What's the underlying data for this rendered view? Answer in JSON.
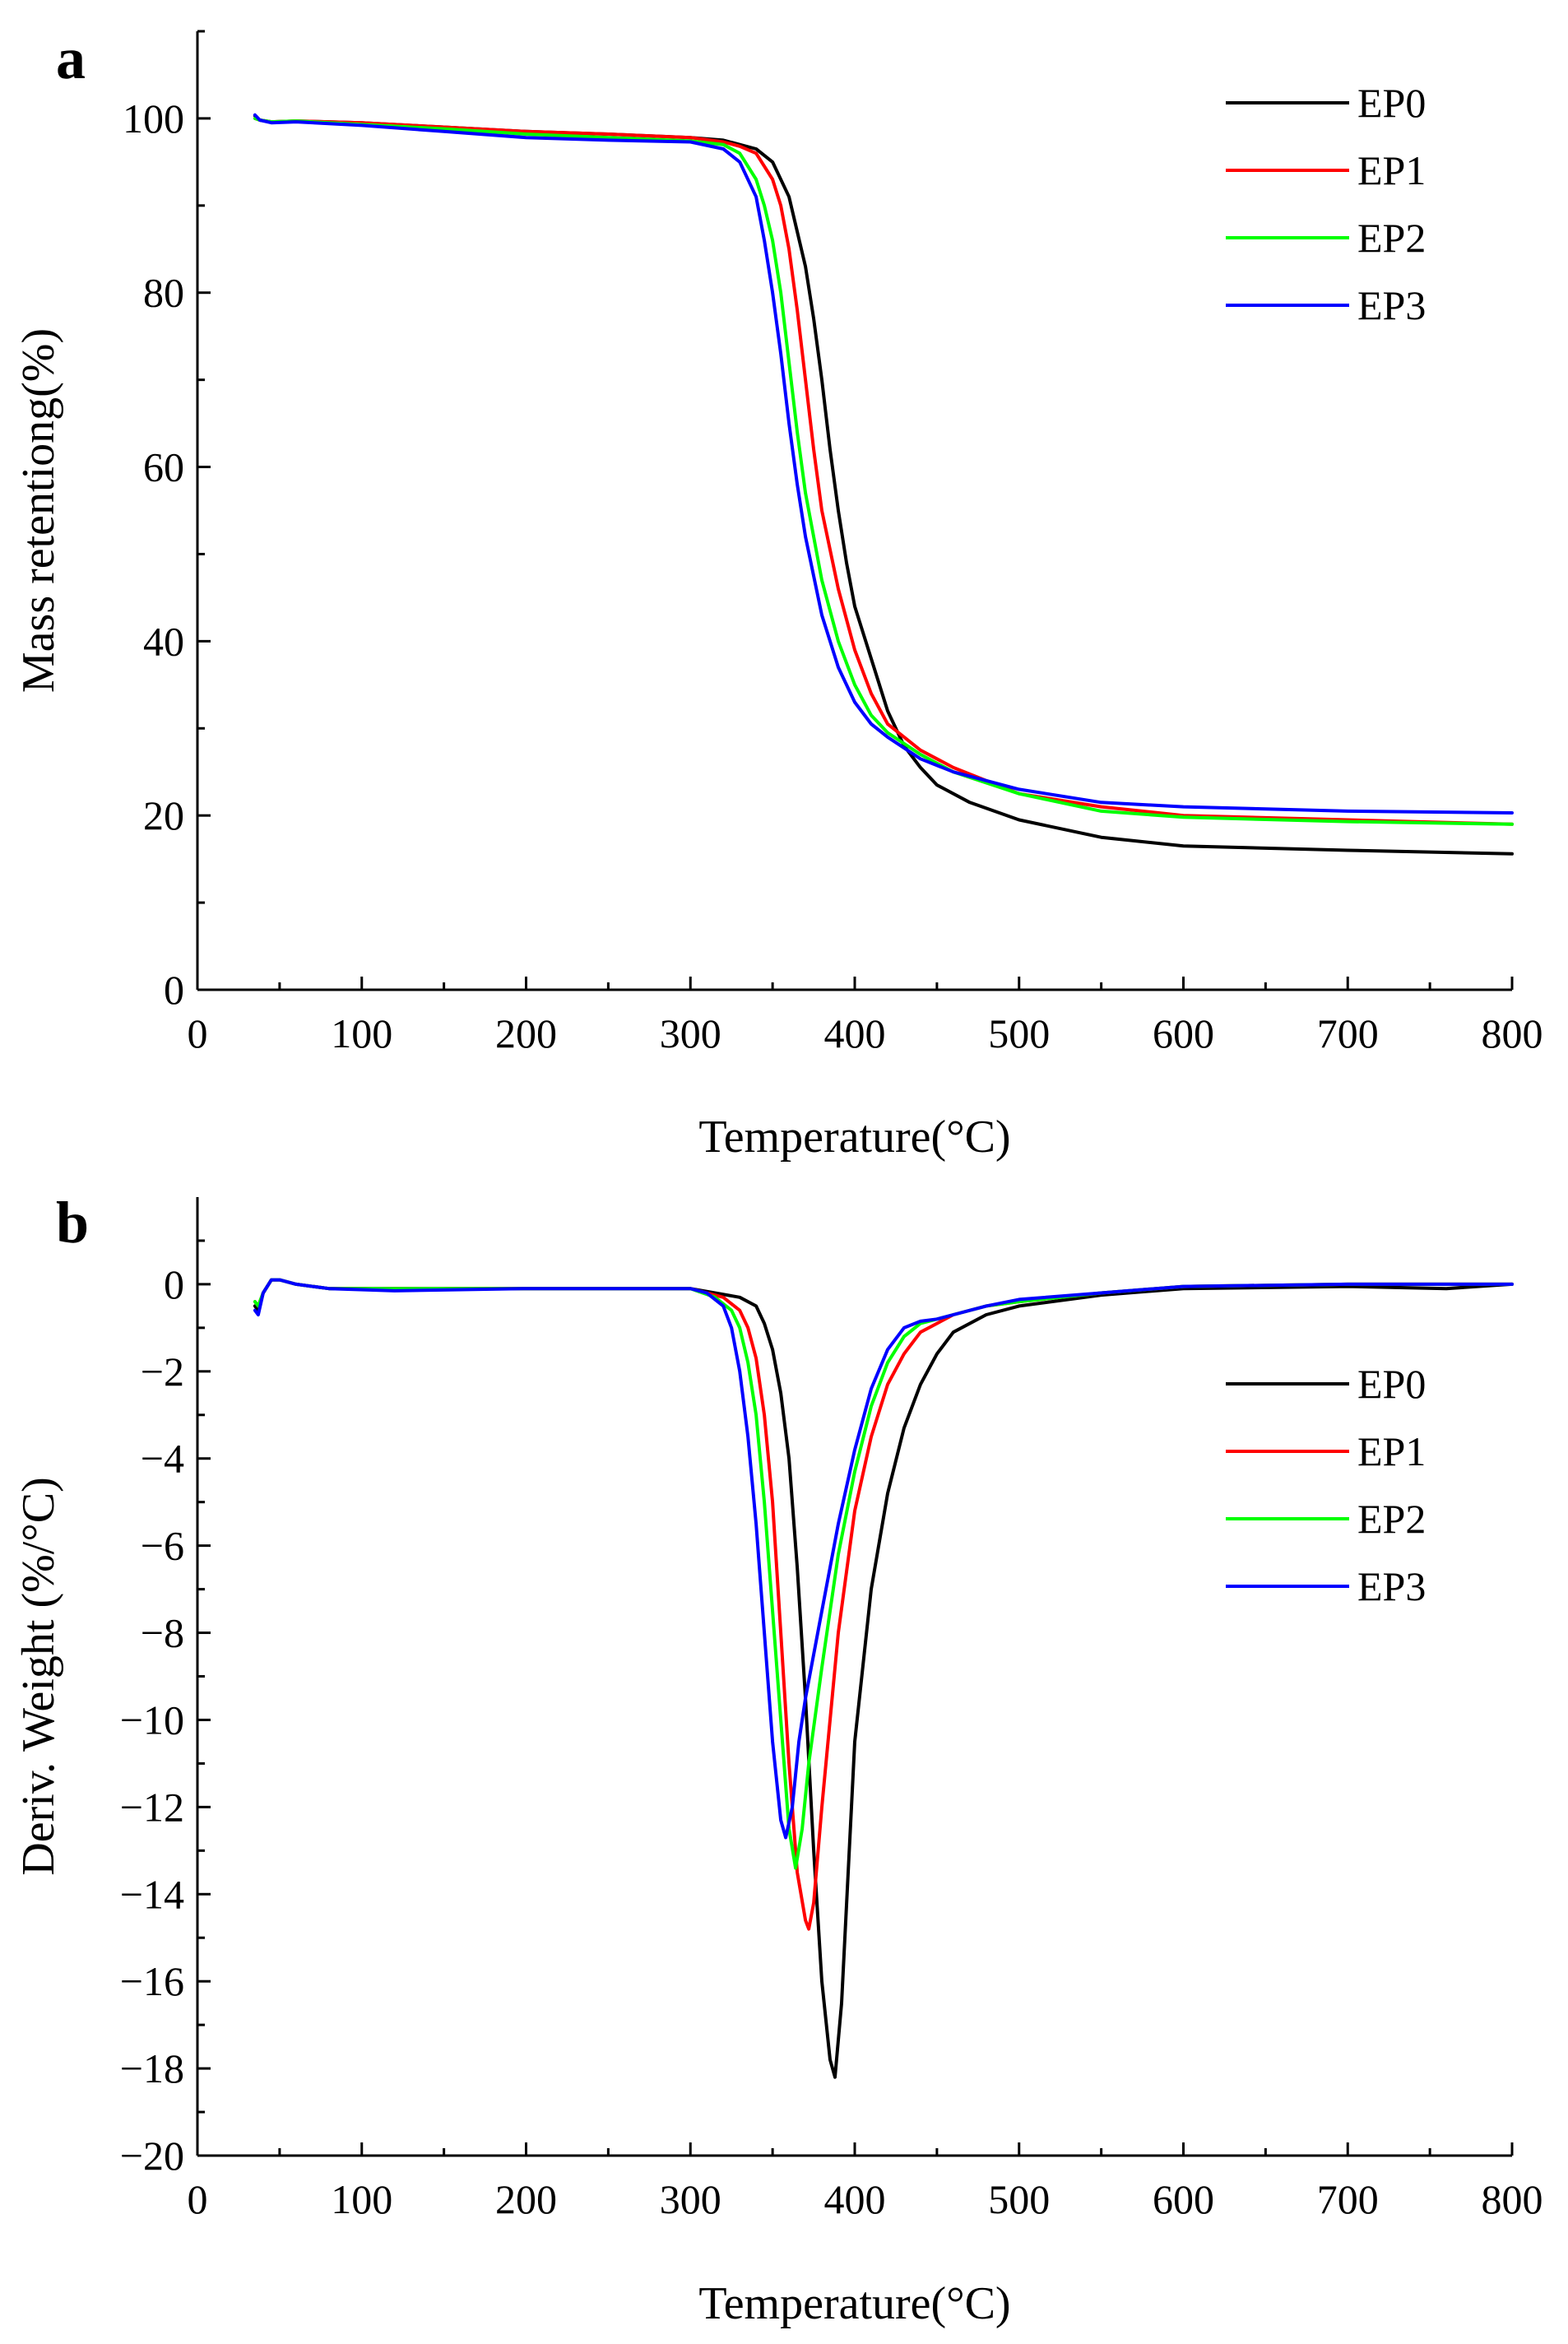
{
  "chart_data": [
    {
      "panel": "a",
      "type": "line",
      "xlabel": "Temperature(°C)",
      "ylabel": "Mass retentiong(%)",
      "xlim": [
        0,
        800
      ],
      "ylim": [
        0,
        110
      ],
      "xticks": [
        0,
        100,
        200,
        300,
        400,
        500,
        600,
        700,
        800
      ],
      "yticks": [
        0,
        20,
        40,
        60,
        80,
        100
      ],
      "legend_position": "top-right",
      "series": [
        {
          "name": "EP0",
          "color": "#000000",
          "x": [
            35,
            38,
            45,
            60,
            100,
            150,
            200,
            250,
            300,
            320,
            340,
            350,
            360,
            370,
            375,
            380,
            385,
            390,
            395,
            400,
            410,
            420,
            430,
            440,
            450,
            470,
            500,
            550,
            600,
            700,
            800
          ],
          "y": [
            100.3,
            99.8,
            99.6,
            99.7,
            99.5,
            99.0,
            98.5,
            98.2,
            97.8,
            97.5,
            96.5,
            95.0,
            91.0,
            83.0,
            77.0,
            70.0,
            62.0,
            55.0,
            49.0,
            44.0,
            38.0,
            32.0,
            28.0,
            25.5,
            23.5,
            21.5,
            19.5,
            17.5,
            16.5,
            16.0,
            15.6
          ]
        },
        {
          "name": "EP1",
          "color": "#ff0000",
          "x": [
            35,
            38,
            45,
            60,
            100,
            150,
            200,
            250,
            300,
            320,
            330,
            340,
            350,
            355,
            360,
            365,
            370,
            375,
            380,
            390,
            400,
            410,
            420,
            440,
            460,
            500,
            550,
            600,
            700,
            800
          ],
          "y": [
            100.0,
            99.8,
            99.6,
            99.7,
            99.5,
            99.0,
            98.5,
            98.2,
            97.8,
            97.3,
            96.8,
            96.0,
            93.0,
            90.0,
            85.0,
            78.0,
            70.0,
            62.0,
            55.0,
            46.0,
            39.0,
            34.0,
            30.5,
            27.5,
            25.5,
            22.5,
            21.0,
            20.0,
            19.5,
            19.0
          ]
        },
        {
          "name": "EP2",
          "color": "#00ff00",
          "x": [
            35,
            38,
            45,
            60,
            100,
            150,
            200,
            250,
            300,
            320,
            330,
            340,
            345,
            350,
            355,
            360,
            365,
            370,
            380,
            390,
            400,
            410,
            420,
            440,
            460,
            500,
            550,
            600,
            700,
            800
          ],
          "y": [
            100.0,
            99.8,
            99.6,
            99.7,
            99.3,
            98.8,
            98.2,
            97.8,
            97.4,
            97.0,
            96.0,
            93.0,
            90.0,
            86.0,
            80.0,
            72.0,
            64.0,
            57.0,
            47.0,
            40.0,
            35.0,
            31.5,
            29.5,
            27.0,
            25.0,
            22.5,
            20.5,
            19.8,
            19.3,
            19.0
          ]
        },
        {
          "name": "EP3",
          "color": "#0000ff",
          "x": [
            35,
            38,
            45,
            60,
            100,
            150,
            200,
            250,
            300,
            320,
            330,
            340,
            345,
            350,
            355,
            360,
            365,
            370,
            380,
            390,
            400,
            410,
            420,
            440,
            460,
            500,
            550,
            600,
            700,
            800
          ],
          "y": [
            100.4,
            99.8,
            99.5,
            99.6,
            99.2,
            98.5,
            97.8,
            97.5,
            97.3,
            96.5,
            95.0,
            91.0,
            86.0,
            80.0,
            73.0,
            65.0,
            58.0,
            52.0,
            43.0,
            37.0,
            33.0,
            30.5,
            29.0,
            26.5,
            25.0,
            23.0,
            21.5,
            21.0,
            20.5,
            20.3
          ]
        }
      ]
    },
    {
      "panel": "b",
      "type": "line",
      "xlabel": "Temperature(°C)",
      "ylabel": "Deriv. Weight (%/°C)",
      "xlim": [
        0,
        800
      ],
      "ylim": [
        -20,
        2
      ],
      "xticks": [
        0,
        100,
        200,
        300,
        400,
        500,
        600,
        700,
        800
      ],
      "yticks": [
        0,
        -2,
        -4,
        -6,
        -8,
        -10,
        -12,
        -14,
        -16,
        -18,
        -20
      ],
      "legend_position": "right",
      "series": [
        {
          "name": "EP0",
          "color": "#000000",
          "x": [
            35,
            37,
            40,
            45,
            50,
            60,
            80,
            120,
            200,
            300,
            330,
            340,
            345,
            350,
            355,
            360,
            365,
            370,
            375,
            380,
            385,
            388,
            392,
            396,
            400,
            410,
            420,
            430,
            440,
            450,
            460,
            480,
            500,
            550,
            600,
            700,
            760,
            800
          ],
          "y": [
            -0.5,
            -0.6,
            -0.2,
            0.1,
            0.1,
            0.0,
            -0.1,
            -0.1,
            -0.1,
            -0.1,
            -0.3,
            -0.5,
            -0.9,
            -1.5,
            -2.5,
            -4.0,
            -6.5,
            -9.5,
            -13.0,
            -16.0,
            -17.8,
            -18.2,
            -16.5,
            -13.5,
            -10.5,
            -7.0,
            -4.8,
            -3.3,
            -2.3,
            -1.6,
            -1.1,
            -0.7,
            -0.5,
            -0.25,
            -0.1,
            -0.05,
            -0.1,
            0.0
          ]
        },
        {
          "name": "EP1",
          "color": "#ff0000",
          "x": [
            35,
            37,
            40,
            45,
            50,
            60,
            80,
            120,
            200,
            300,
            320,
            330,
            335,
            340,
            345,
            350,
            355,
            360,
            365,
            370,
            372,
            375,
            380,
            385,
            390,
            400,
            410,
            420,
            430,
            440,
            450,
            460,
            480,
            500,
            550,
            600,
            700,
            800
          ],
          "y": [
            -0.4,
            -0.5,
            -0.2,
            0.1,
            0.1,
            0.0,
            -0.1,
            -0.1,
            -0.1,
            -0.1,
            -0.3,
            -0.6,
            -1.0,
            -1.7,
            -3.0,
            -5.0,
            -8.0,
            -11.0,
            -13.5,
            -14.6,
            -14.8,
            -14.2,
            -12.0,
            -10.0,
            -8.0,
            -5.2,
            -3.5,
            -2.3,
            -1.6,
            -1.1,
            -0.9,
            -0.7,
            -0.5,
            -0.4,
            -0.2,
            -0.05,
            0.0,
            0.0
          ]
        },
        {
          "name": "EP2",
          "color": "#00ff00",
          "x": [
            35,
            37,
            40,
            45,
            50,
            60,
            80,
            120,
            200,
            300,
            315,
            325,
            330,
            335,
            340,
            345,
            350,
            355,
            360,
            364,
            368,
            372,
            380,
            390,
            400,
            410,
            420,
            430,
            440,
            450,
            460,
            480,
            500,
            550,
            600,
            700,
            800
          ],
          "y": [
            -0.4,
            -0.5,
            -0.2,
            0.1,
            0.1,
            0.0,
            -0.1,
            -0.1,
            -0.1,
            -0.1,
            -0.3,
            -0.6,
            -1.0,
            -1.8,
            -3.0,
            -5.0,
            -7.5,
            -10.0,
            -12.5,
            -13.4,
            -12.5,
            -11.0,
            -8.8,
            -6.2,
            -4.3,
            -2.8,
            -1.8,
            -1.2,
            -0.9,
            -0.8,
            -0.7,
            -0.5,
            -0.4,
            -0.2,
            -0.05,
            0.0,
            0.0
          ]
        },
        {
          "name": "EP3",
          "color": "#0000ff",
          "x": [
            35,
            37,
            40,
            45,
            50,
            60,
            80,
            120,
            200,
            300,
            310,
            320,
            325,
            330,
            335,
            340,
            345,
            350,
            355,
            358,
            362,
            366,
            370,
            380,
            390,
            400,
            410,
            420,
            430,
            440,
            450,
            460,
            480,
            500,
            550,
            600,
            700,
            800
          ],
          "y": [
            -0.6,
            -0.7,
            -0.2,
            0.1,
            0.1,
            0.0,
            -0.1,
            -0.15,
            -0.1,
            -0.1,
            -0.2,
            -0.5,
            -1.0,
            -2.0,
            -3.5,
            -5.5,
            -8.0,
            -10.5,
            -12.3,
            -12.7,
            -12.0,
            -10.5,
            -9.5,
            -7.5,
            -5.5,
            -3.8,
            -2.4,
            -1.5,
            -1.0,
            -0.85,
            -0.8,
            -0.7,
            -0.5,
            -0.35,
            -0.2,
            -0.05,
            0.0,
            0.0
          ]
        }
      ]
    }
  ]
}
